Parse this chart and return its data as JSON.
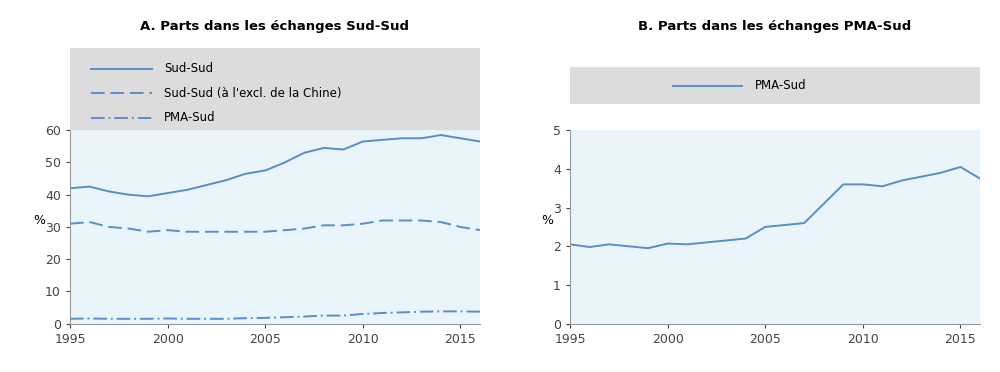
{
  "title_a": "A. Parts dans les échanges Sud-Sud",
  "title_b": "B. Parts dans les échanges PMA-Sud",
  "ylabel": "%",
  "line_color": "#5B8DC8",
  "bg_color": "#EAF4FB",
  "legend_bg": "#DCDCDC",
  "years": [
    1995,
    1996,
    1997,
    1998,
    1999,
    2000,
    2001,
    2002,
    2003,
    2004,
    2005,
    2006,
    2007,
    2008,
    2009,
    2010,
    2011,
    2012,
    2013,
    2014,
    2015,
    2016
  ],
  "sud_sud": [
    42.0,
    42.5,
    41.0,
    40.0,
    39.5,
    40.5,
    41.5,
    43.0,
    44.5,
    46.5,
    47.5,
    50.0,
    53.0,
    54.5,
    54.0,
    56.5,
    57.0,
    57.5,
    57.5,
    58.5,
    57.5,
    56.5
  ],
  "sud_sud_excl": [
    31.0,
    31.5,
    30.0,
    29.5,
    28.5,
    29.0,
    28.5,
    28.5,
    28.5,
    28.5,
    28.5,
    29.0,
    29.5,
    30.5,
    30.5,
    31.0,
    32.0,
    32.0,
    32.0,
    31.5,
    30.0,
    29.0
  ],
  "pma_sud_a": [
    1.5,
    1.6,
    1.5,
    1.5,
    1.5,
    1.6,
    1.5,
    1.5,
    1.5,
    1.7,
    1.8,
    2.0,
    2.2,
    2.5,
    2.5,
    3.0,
    3.3,
    3.5,
    3.7,
    3.8,
    3.8,
    3.7
  ],
  "pma_sud_b": [
    2.05,
    1.98,
    2.05,
    2.0,
    1.95,
    2.07,
    2.05,
    2.1,
    2.15,
    2.2,
    2.5,
    2.55,
    2.6,
    3.1,
    3.6,
    3.6,
    3.55,
    3.7,
    3.8,
    3.9,
    4.05,
    3.75
  ],
  "legend_a": [
    "Sud-Sud",
    "Sud-Sud (à l'excl. de la Chine)",
    "PMA-Sud"
  ],
  "legend_b": [
    "PMA-Sud"
  ],
  "ylim_a": [
    0,
    60
  ],
  "ylim_b": [
    0,
    5
  ],
  "yticks_a": [
    0,
    10,
    20,
    30,
    40,
    50,
    60
  ],
  "yticks_b": [
    0,
    1,
    2,
    3,
    4,
    5
  ],
  "xticks": [
    1995,
    2000,
    2005,
    2010,
    2015
  ]
}
